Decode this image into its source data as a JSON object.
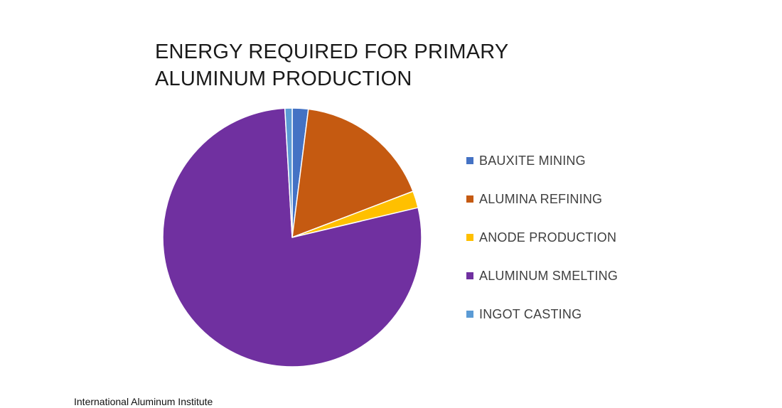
{
  "chart_data": {
    "type": "pie",
    "title_lines": [
      "ENERGY REQUIRED FOR PRIMARY",
      "ALUMINUM PRODUCTION"
    ],
    "categories": [
      "BAUXITE MINING",
      "ALUMINA REFINING",
      "ANODE PRODUCTION",
      "ALUMINUM SMELTING",
      "INGOT CASTING"
    ],
    "values": [
      2.0,
      17.2,
      2.1,
      77.8,
      0.9
    ],
    "colors": [
      "#4472C4",
      "#C55A11",
      "#FFC000",
      "#7030A0",
      "#5B9BD5"
    ],
    "legend_position": "right",
    "start_angle_deg": 0,
    "direction": "clockwise"
  },
  "source": "International Aluminum Institute"
}
